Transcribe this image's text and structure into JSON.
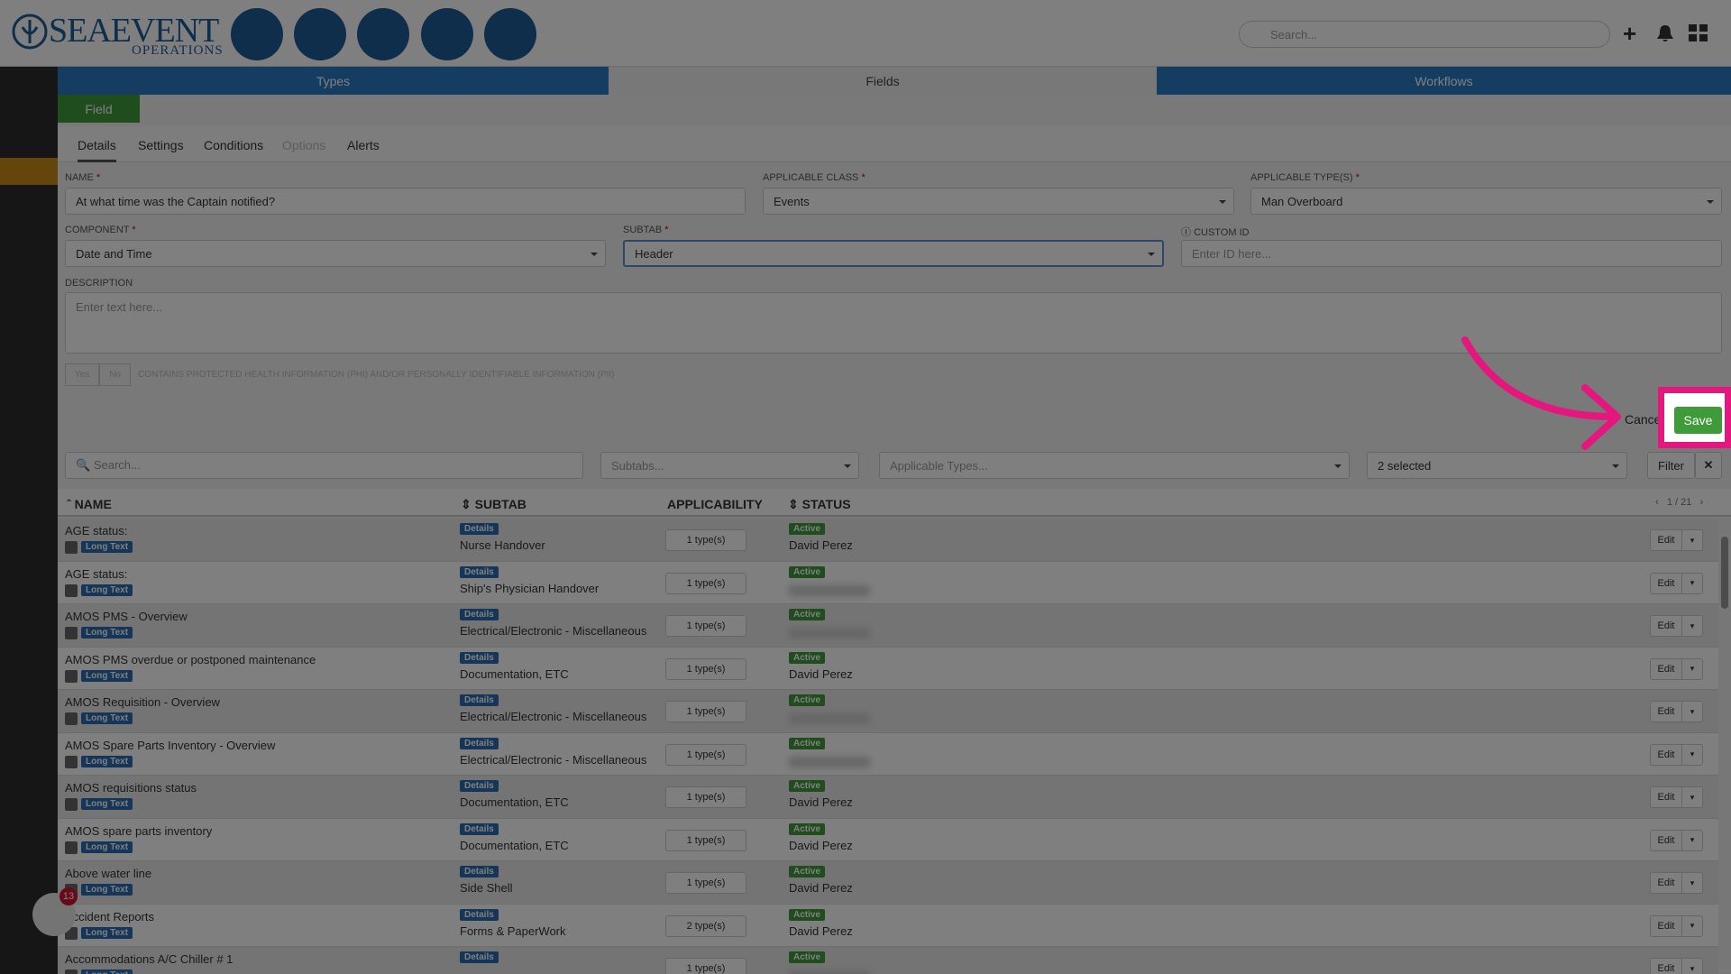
{
  "header": {
    "logo": "SEAEVENT",
    "logo_sub": "OPERATIONS",
    "search_placeholder": "Search..."
  },
  "tabs": [
    "Types",
    "Fields",
    "Workflows"
  ],
  "field_button": "Field",
  "subtabs": [
    "Details",
    "Settings",
    "Conditions",
    "Options",
    "Alerts"
  ],
  "form": {
    "name": {
      "label": "NAME",
      "value": "At what time was the Captain notified?"
    },
    "applicable_class": {
      "label": "APPLICABLE CLASS",
      "value": "Events"
    },
    "applicable_types": {
      "label": "APPLICABLE TYPE(S)",
      "value": "Man Overboard"
    },
    "component": {
      "label": "COMPONENT",
      "value": "Date and Time"
    },
    "subtab": {
      "label": "SUBTAB",
      "value": "Header"
    },
    "custom_id": {
      "label": "CUSTOM ID",
      "placeholder": "Enter ID here..."
    },
    "description": {
      "label": "DESCRIPTION",
      "placeholder": "Enter text here..."
    },
    "phi": {
      "yes": "Yes",
      "no": "No",
      "label": "CONTAINS PROTECTED HEALTH INFORMATION (PHI) AND/OR PERSONALLY IDENTIFIABLE INFORMATION (PII)"
    },
    "cancel": "Cancel",
    "save": "Save"
  },
  "filters": {
    "search": "Search...",
    "subtabs": "Subtabs...",
    "applicable_types": "Applicable Types...",
    "status": "2 selected",
    "filter": "Filter"
  },
  "table": {
    "columns": [
      "NAME",
      "SUBTAB",
      "APPLICABILITY",
      "STATUS"
    ],
    "pager": "1 / 21",
    "rows": [
      {
        "name": "AGE status:",
        "type": "Long Text",
        "subtab_badge": "Details",
        "subtab": "Nurse Handover",
        "applicability": "1 type(s)",
        "status": "Active",
        "user": "David Perez",
        "action": "Edit"
      },
      {
        "name": "AGE status:",
        "type": "Long Text",
        "subtab_badge": "Details",
        "subtab": "Ship's Physician Handover",
        "applicability": "1 type(s)",
        "status": "Active",
        "action": "Edit"
      },
      {
        "name": "AMOS PMS - Overview",
        "type": "Long Text",
        "subtab_badge": "Details",
        "subtab": "Electrical/Electronic - Miscellaneous",
        "applicability": "1 type(s)",
        "status": "Active",
        "action": "Edit"
      },
      {
        "name": "AMOS PMS overdue or postponed maintenance",
        "type": "Long Text",
        "subtab_badge": "Details",
        "subtab": "Documentation, ETC",
        "applicability": "1 type(s)",
        "status": "Active",
        "user": "David Perez",
        "action": "Edit"
      },
      {
        "name": "AMOS Requisition - Overview",
        "type": "Long Text",
        "subtab_badge": "Details",
        "subtab": "Electrical/Electronic - Miscellaneous",
        "applicability": "1 type(s)",
        "status": "Active",
        "action": "Edit"
      },
      {
        "name": "AMOS Spare Parts Inventory - Overview",
        "type": "Long Text",
        "subtab_badge": "Details",
        "subtab": "Electrical/Electronic - Miscellaneous",
        "applicability": "1 type(s)",
        "status": "Active",
        "action": "Edit"
      },
      {
        "name": "AMOS requisitions status",
        "type": "Long Text",
        "subtab_badge": "Details",
        "subtab": "Documentation, ETC",
        "applicability": "1 type(s)",
        "status": "Active",
        "user": "David Perez",
        "action": "Edit"
      },
      {
        "name": "AMOS spare parts inventory",
        "type": "Long Text",
        "subtab_badge": "Details",
        "subtab": "Documentation, ETC",
        "applicability": "1 type(s)",
        "status": "Active",
        "user": "David Perez",
        "action": "Edit"
      },
      {
        "name": "Above water line",
        "type": "Long Text",
        "subtab_badge": "Details",
        "subtab": "Side Shell",
        "applicability": "1 type(s)",
        "status": "Active",
        "user": "David Perez",
        "action": "Edit"
      },
      {
        "name": "Accident Reports",
        "type": "Long Text",
        "subtab_badge": "Details",
        "subtab": "Forms & PaperWork",
        "applicability": "2 type(s)",
        "status": "Active",
        "user": "David Perez",
        "action": "Edit"
      },
      {
        "name": "Accommodations A/C Chiller # 1",
        "type": "Long Text",
        "subtab_badge": "Details",
        "applicability": "1 type(s)",
        "status": "Active",
        "action": "Edit"
      }
    ]
  },
  "notification_count": "13"
}
